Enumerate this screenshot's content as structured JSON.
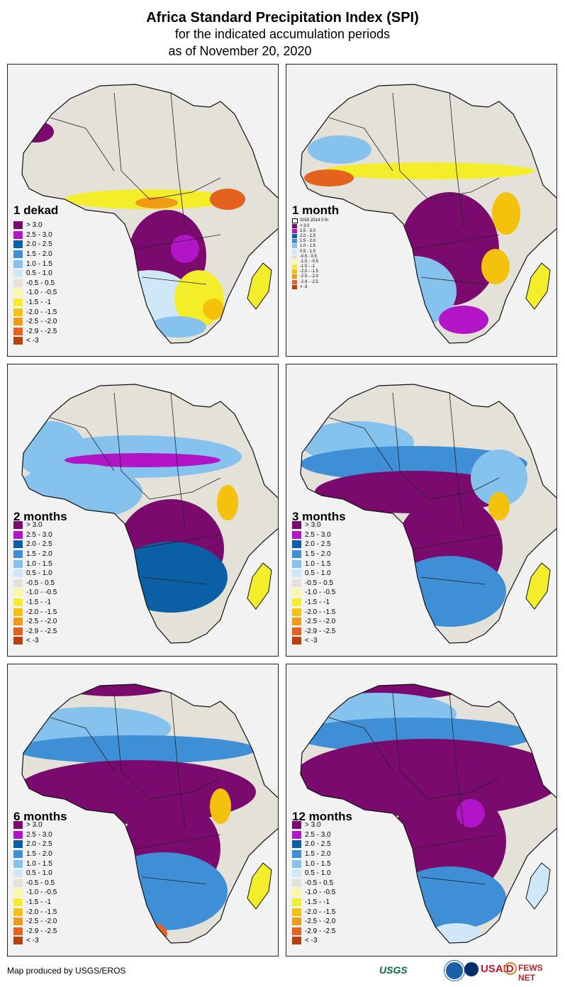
{
  "header": {
    "title": "Africa Standard Precipitation Index (SPI)",
    "subtitle": "for the indicated accumulation periods",
    "date": "as of November 20, 2020"
  },
  "legend_colors": [
    "#7a0a6e",
    "#b214c8",
    "#0b5fa5",
    "#3e8fd6",
    "#86c2ee",
    "#cfe7f7",
    "#e4e1d9",
    "#fbf7a7",
    "#f4ee2a",
    "#f4c20d",
    "#f09a16",
    "#e4621d",
    "#b5420f"
  ],
  "legend_labels": [
    "> 3.0",
    "2.5 - 3.0",
    "2.0 - 2.5",
    "1.5 - 2.0",
    "1.0 - 1.5",
    "0.5 - 1.0",
    "-0.5 - 0.5",
    "-1.0 - -0.5",
    "-1.5 - -1",
    "-2.0 - -1.5",
    "-2.5 - -2.0",
    "-2.9 - -2.5",
    "< -3"
  ],
  "legend_labels_1month": [
    "> 3.0",
    "2.5 - 3.0",
    "2.0 - 2.5",
    "1.5 - 2.0",
    "1.0 - 1.5",
    "0.5 - 1.0",
    "-0.5 - 0.5",
    "-1.0 - -0.5",
    "-1.5 - -1",
    "-2.0 - -1.5",
    "-2.5 - -2.0",
    "-2.9 - -2.5",
    "< -3"
  ],
  "inset_note": "2015 2014 0 fn",
  "panels": [
    {
      "id": "p1",
      "label": "1 dekad"
    },
    {
      "id": "p2",
      "label": "1 month"
    },
    {
      "id": "p3",
      "label": "2 months"
    },
    {
      "id": "p4",
      "label": "3 months"
    },
    {
      "id": "p5",
      "label": "6 months"
    },
    {
      "id": "p6",
      "label": "12 months"
    }
  ],
  "footer": {
    "credit": "Map produced by USGS/EROS",
    "logo_usgs": "USGS",
    "logo_usaid": "USAID",
    "logo_fews": "FEWS NET"
  }
}
